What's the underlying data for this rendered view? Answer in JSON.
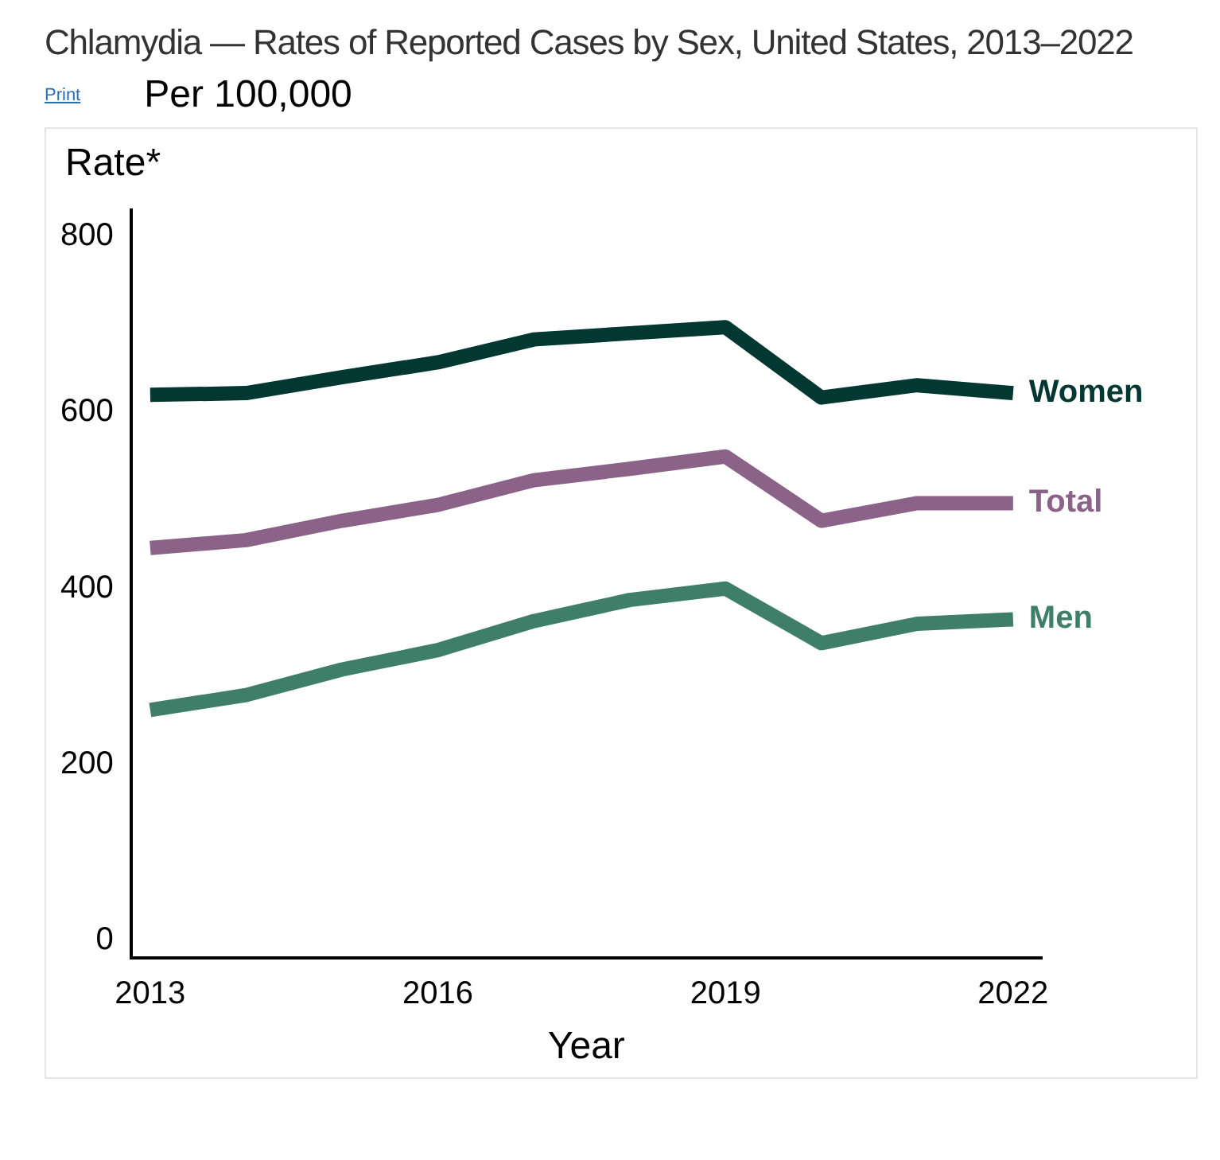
{
  "chart_data": {
    "type": "line",
    "title": "Chlamydia — Rates of Reported Cases by Sex, United States, 2013–2022",
    "subtitle": "Per 100,000",
    "annotations": [
      "Print"
    ],
    "xlabel": "Year",
    "ylabel": "Rate*",
    "x": [
      2013,
      2014,
      2015,
      2016,
      2017,
      2018,
      2019,
      2020,
      2021,
      2022
    ],
    "series": [
      {
        "name": "Women",
        "color": "#033832",
        "values": [
          620,
          622,
          640,
          657,
          683,
          690,
          697,
          617,
          631,
          622
        ]
      },
      {
        "name": "Total",
        "color": "#8b6388",
        "values": [
          446,
          455,
          477,
          495,
          523,
          536,
          550,
          477,
          497,
          497
        ]
      },
      {
        "name": "Men",
        "color": "#3f7f69",
        "values": [
          262,
          279,
          308,
          330,
          363,
          387,
          400,
          338,
          360,
          365
        ]
      }
    ],
    "xlim": [
      2012.8,
      2022.3
    ],
    "xticks": [
      2013,
      2016,
      2019,
      2022
    ],
    "ylim": [
      -20,
      830
    ],
    "yticks": [
      0,
      200,
      400,
      600,
      800
    ],
    "grid": false,
    "legend": false,
    "marker": "none",
    "line_style": "solid"
  }
}
